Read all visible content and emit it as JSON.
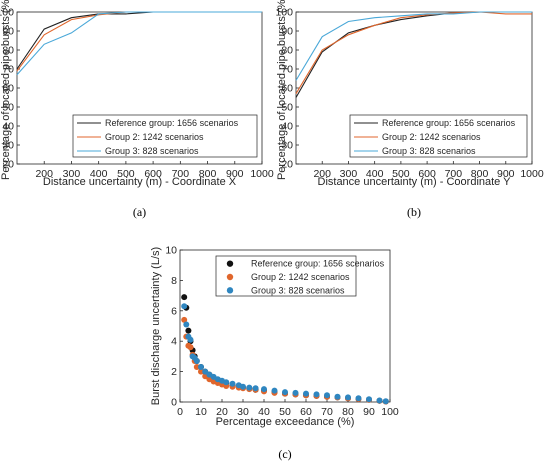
{
  "chart_data": [
    {
      "type": "line",
      "panel_label": "(a)",
      "xlabel": "Distance uncertainty (m) - Coordinate X",
      "ylabel": "Percentage of located pipe bursts (%)",
      "xlim": [
        100,
        1000
      ],
      "ylim": [
        20,
        100
      ],
      "xticks": [
        200,
        300,
        400,
        500,
        600,
        700,
        800,
        900,
        1000
      ],
      "yticks": [
        20,
        30,
        40,
        50,
        60,
        70,
        80,
        90,
        100
      ],
      "grid": false,
      "legend_position": "lower-right",
      "series": [
        {
          "name": "Reference group: 1656 scenarios",
          "color": "#222222",
          "x": [
            100,
            200,
            300,
            400,
            500,
            600,
            700,
            800,
            900,
            1000
          ],
          "y": [
            70,
            91,
            97,
            99,
            99,
            100,
            100,
            100,
            100,
            100
          ]
        },
        {
          "name": "Group 2: 1242 scenarios",
          "color": "#e0662c",
          "x": [
            100,
            200,
            300,
            400,
            500,
            600,
            700,
            800,
            900,
            1000
          ],
          "y": [
            69,
            88,
            96,
            98.5,
            100,
            100,
            100,
            100,
            100,
            100
          ]
        },
        {
          "name": "Group 3: 828 scenarios",
          "color": "#4aa8d8",
          "x": [
            100,
            200,
            300,
            400,
            500,
            600,
            700,
            800,
            900,
            1000
          ],
          "y": [
            67,
            83,
            89,
            99,
            100,
            100,
            100,
            100,
            100,
            100
          ]
        }
      ]
    },
    {
      "type": "line",
      "panel_label": "(b)",
      "xlabel": "Distance uncertainty (m) - Coordinate Y",
      "ylabel": "Percentage of located pipe bursts (%)",
      "xlim": [
        100,
        1000
      ],
      "ylim": [
        20,
        100
      ],
      "xticks": [
        200,
        300,
        400,
        500,
        600,
        700,
        800,
        900,
        1000
      ],
      "yticks": [
        20,
        30,
        40,
        50,
        60,
        70,
        80,
        90,
        100
      ],
      "grid": false,
      "legend_position": "lower-right",
      "series": [
        {
          "name": "Reference group: 1656 scenarios",
          "color": "#222222",
          "x": [
            100,
            200,
            300,
            400,
            500,
            600,
            700,
            800,
            900,
            1000
          ],
          "y": [
            55,
            79,
            89,
            93,
            96,
            98,
            99.5,
            100,
            100,
            100
          ]
        },
        {
          "name": "Group 2: 1242 scenarios",
          "color": "#e0662c",
          "x": [
            100,
            200,
            300,
            400,
            500,
            600,
            700,
            800,
            900,
            1000
          ],
          "y": [
            57,
            80,
            88,
            93,
            97,
            98.5,
            99.5,
            100,
            99,
            99
          ]
        },
        {
          "name": "Group 3: 828 scenarios",
          "color": "#4aa8d8",
          "x": [
            100,
            200,
            300,
            400,
            500,
            600,
            700,
            800,
            900,
            1000
          ],
          "y": [
            64,
            87,
            95,
            97,
            98,
            99,
            99,
            100,
            100,
            100
          ]
        }
      ]
    },
    {
      "type": "scatter",
      "panel_label": "(c)",
      "xlabel": "Percentage exceedance (%)",
      "ylabel": "Burst discharge uncertainty (L/s)",
      "xlim": [
        0,
        100
      ],
      "ylim": [
        0,
        10
      ],
      "xticks": [
        0,
        10,
        20,
        30,
        40,
        50,
        60,
        70,
        80,
        90,
        100
      ],
      "yticks": [
        0,
        2,
        4,
        6,
        8,
        10
      ],
      "grid": false,
      "legend_position": "top-right",
      "series": [
        {
          "name": "Reference group: 1656 scenarios",
          "color": "#111111",
          "x": [
            2,
            3,
            4,
            5,
            6,
            7,
            8,
            10,
            12,
            14,
            16,
            18,
            20,
            22,
            25,
            28,
            30,
            33,
            36,
            40,
            45,
            50,
            55,
            60,
            65,
            70,
            75,
            80,
            85,
            90,
            95,
            98
          ],
          "y": [
            6.9,
            6.2,
            4.7,
            4.0,
            3.4,
            3.0,
            2.7,
            2.3,
            2.0,
            1.8,
            1.6,
            1.45,
            1.35,
            1.25,
            1.1,
            1.0,
            0.95,
            0.9,
            0.8,
            0.75,
            0.65,
            0.55,
            0.5,
            0.45,
            0.4,
            0.35,
            0.3,
            0.25,
            0.2,
            0.15,
            0.08,
            0.03
          ]
        },
        {
          "name": "Group 2: 1242 scenarios",
          "color": "#e0662c",
          "x": [
            2,
            3,
            4,
            5,
            6,
            7,
            8,
            10,
            12,
            14,
            16,
            18,
            20,
            22,
            25,
            28,
            30,
            33,
            36,
            40,
            45,
            50,
            55,
            60,
            65,
            70,
            75,
            80,
            85,
            90,
            95,
            98
          ],
          "y": [
            5.4,
            4.3,
            3.7,
            3.6,
            3.1,
            2.7,
            2.3,
            2.0,
            1.7,
            1.5,
            1.35,
            1.25,
            1.15,
            1.05,
            1.0,
            0.95,
            0.9,
            0.85,
            0.8,
            0.7,
            0.6,
            0.55,
            0.5,
            0.45,
            0.4,
            0.35,
            0.3,
            0.25,
            0.2,
            0.15,
            0.08,
            0.03
          ]
        },
        {
          "name": "Group 3: 828 scenarios",
          "color": "#2f86c0",
          "x": [
            2,
            3,
            4,
            5,
            6,
            7,
            8,
            10,
            12,
            14,
            16,
            18,
            20,
            22,
            25,
            28,
            30,
            33,
            36,
            40,
            45,
            50,
            55,
            60,
            65,
            70,
            75,
            80,
            85,
            90,
            95,
            98
          ],
          "y": [
            6.3,
            5.1,
            4.3,
            4.1,
            3.0,
            2.9,
            2.7,
            2.3,
            2.0,
            1.8,
            1.65,
            1.5,
            1.4,
            1.3,
            1.2,
            1.1,
            1.0,
            0.95,
            0.9,
            0.85,
            0.75,
            0.65,
            0.6,
            0.55,
            0.5,
            0.45,
            0.35,
            0.3,
            0.25,
            0.18,
            0.1,
            0.05
          ]
        }
      ]
    }
  ]
}
